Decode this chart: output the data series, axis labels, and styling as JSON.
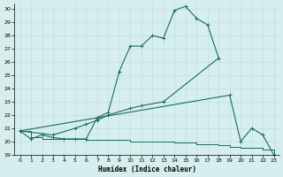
{
  "xlabel": "Humidex (Indice chaleur)",
  "background_color": "#d6efee",
  "grid_color": "#c0dedd",
  "line_color": "#1a6b5a",
  "xlim": [
    -0.5,
    23.5
  ],
  "ylim": [
    19,
    30.4
  ],
  "xticks": [
    0,
    1,
    2,
    3,
    4,
    5,
    6,
    7,
    8,
    9,
    10,
    11,
    12,
    13,
    14,
    15,
    16,
    17,
    18,
    19,
    20,
    21,
    22,
    23
  ],
  "yticks": [
    19,
    20,
    21,
    22,
    23,
    24,
    25,
    26,
    27,
    28,
    29,
    30
  ],
  "series1_x": [
    0,
    1,
    2,
    3,
    4,
    5,
    6,
    7,
    8,
    9,
    10,
    11,
    12,
    13,
    14,
    15,
    16,
    17,
    18
  ],
  "series1_y": [
    20.8,
    20.2,
    20.5,
    20.3,
    20.2,
    20.2,
    20.2,
    21.8,
    22.2,
    25.3,
    27.2,
    27.2,
    28.0,
    27.8,
    29.9,
    30.2,
    29.3,
    28.8,
    26.3
  ],
  "series2_x": [
    0,
    3,
    5,
    6,
    7,
    8,
    10,
    11,
    13,
    18
  ],
  "series2_y": [
    20.8,
    20.5,
    21.0,
    21.3,
    21.6,
    22.0,
    22.5,
    22.7,
    23.0,
    26.3
  ],
  "series3_x": [
    0,
    19,
    20,
    21,
    22,
    23
  ],
  "series3_y": [
    20.8,
    23.5,
    20.0,
    21.0,
    20.5,
    19.0
  ],
  "series4_x": [
    0,
    1,
    2,
    3,
    4,
    5,
    6,
    7,
    8,
    9,
    10,
    11,
    12,
    13,
    14,
    15,
    16,
    17,
    18,
    19,
    20,
    21,
    22,
    23
  ],
  "series4_y": [
    20.8,
    20.3,
    20.2,
    20.2,
    20.2,
    20.2,
    20.1,
    20.1,
    20.1,
    20.1,
    20.0,
    20.0,
    20.0,
    20.0,
    19.9,
    19.9,
    19.8,
    19.8,
    19.7,
    19.6,
    19.5,
    19.5,
    19.4,
    19.0
  ]
}
